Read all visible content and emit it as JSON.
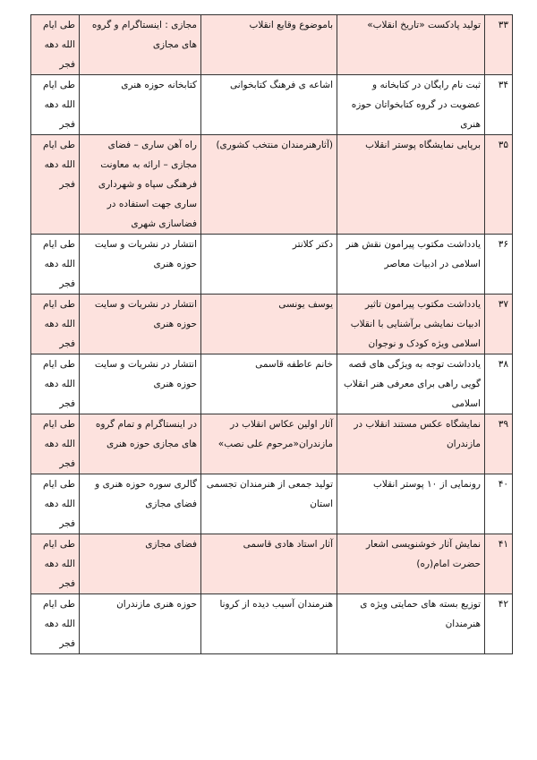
{
  "colors": {
    "highlight_row": "#fde2de",
    "border": "#333333"
  },
  "rows": [
    {
      "num": "۳۳",
      "title": "تولید پادکست «تاریخ انقلاب»",
      "description": "باموضوع وقایع انقلاب",
      "venue": "مجازی : اینستاگرام و گروه های مجازی",
      "time": "طی ایام الله دهه فجر",
      "highlighted": true
    },
    {
      "num": "۳۴",
      "title": "ثبت نام رایگان در کتابخانه و عضویت در گروه کتابخواتان حوزه هنری",
      "description": "اشاعه ی فرهنگ کتابخوانی",
      "venue": "کتابخانه حوزه هنری",
      "time": "طی ایام الله دهه فجر",
      "highlighted": false
    },
    {
      "num": "۳۵",
      "title": "برپایی نمایشگاه پوستر انقلاب",
      "description": "(آثارهنرمندان منتخب کشوری)",
      "venue": "راه آهن ساری – فضای مجازی – ارائه به معاونت فرهنگی سپاه و شهرداری ساری جهت استفاده در فضاسازی شهری",
      "time": "طی ایام الله دهه فجر",
      "highlighted": true
    },
    {
      "num": "۳۶",
      "title": "یادداشت مکتوب پیرامون نقش هنر اسلامی در ادبیات معاصر",
      "description": "دکتر کلانتر",
      "venue": "انتشار در نشریات و سایت حوزه هنری",
      "time": "طی ایام الله دهه فجر",
      "highlighted": false
    },
    {
      "num": "۳۷",
      "title": "یادداشت  مکتوب پیرامون تاثیر ادبیات نمایشی برآشنایی با انقلاب اسلامی ویژه کودک و نوجوان",
      "description": "یوسف یونسی",
      "venue": "انتشار در نشریات و سایت حوزه هنری",
      "time": "طی ایام الله دهه فجر",
      "highlighted": true
    },
    {
      "num": "۳۸",
      "title": "یادداشت توجه به ویژگی های قصه گویی راهی برای معرفی هنر انقلاب اسلامی",
      "description": "خانم عاطفه قاسمی",
      "venue": "انتشار در نشریات و سایت حوزه هنری",
      "time": "طی ایام الله دهه فجر",
      "highlighted": false
    },
    {
      "num": "۳۹",
      "title": "نمایشگاه عکس مستند انقلاب در مازندران",
      "description": "آثار اولین عکاس انقلاب در مازندران«مرحوم علی نصب»",
      "venue": "در اینستاگرام و تمام گروه های مجازی حوزه هنری",
      "time": "طی ایام الله دهه فجر",
      "highlighted": true
    },
    {
      "num": "۴۰",
      "title": "رونمایی از ۱۰ پوستر انقلاب",
      "description": "تولید جمعی از هنرمندان تجسمی استان",
      "venue": "گالری سوره حوزه هنری و فضای مجازی",
      "time": "طی ایام الله دهه فجر",
      "highlighted": false
    },
    {
      "num": "۴۱",
      "title": "نمایش آثار خوشنویسی اشعار حضرت امام(ره)",
      "description": "آثار استاد هادی قاسمی",
      "venue": "فضای مجازی",
      "time": "طی ایام الله دهه فجر",
      "highlighted": true
    },
    {
      "num": "۴۲",
      "title": "توزیع بسته های حمایتی ویژه ی هنرمندان",
      "description": "هنرمندان آسیب دیده از کرونا",
      "venue": "حوزه هنری مازندران",
      "time": "طی ایام الله دهه فجر",
      "highlighted": false
    }
  ]
}
